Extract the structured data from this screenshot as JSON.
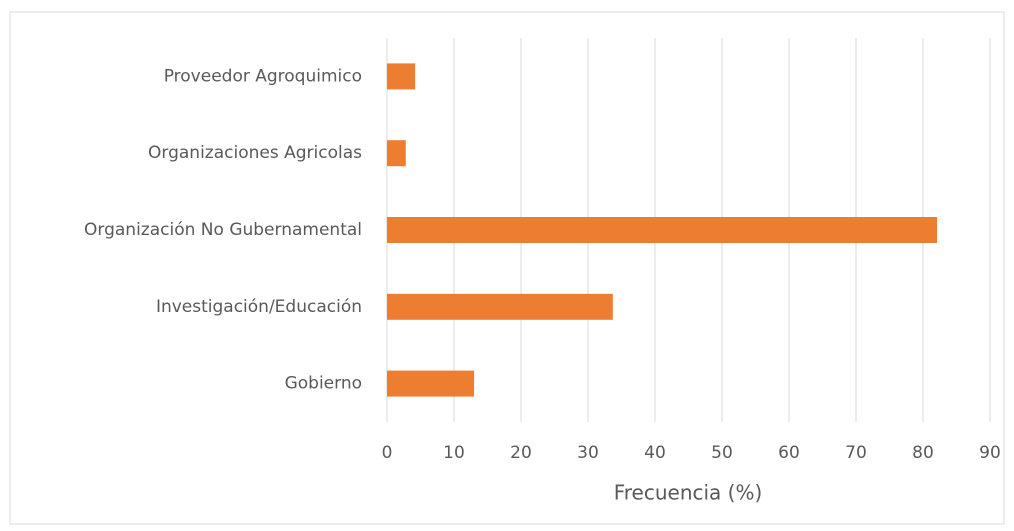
{
  "chart_data": {
    "type": "bar",
    "orientation": "horizontal",
    "x_axis_label": "Frecuencia (%)",
    "categories": [
      "Proveedor Agroquimico",
      "Organizaciones Agricolas",
      "Organización No Gubernamental",
      "Investigación/Educación",
      "Gobierno"
    ],
    "values": [
      4.2,
      2.8,
      82.1,
      33.7,
      13.0
    ],
    "color": "#ed7d31",
    "xlim": [
      0,
      90
    ],
    "xticks": [
      0,
      10,
      20,
      30,
      40,
      50,
      60,
      70,
      80,
      90
    ],
    "grid": true
  }
}
